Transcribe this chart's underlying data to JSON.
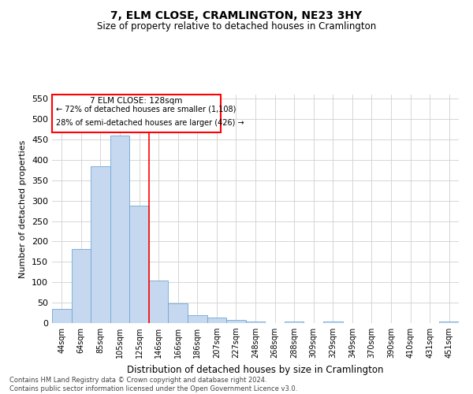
{
  "title": "7, ELM CLOSE, CRAMLINGTON, NE23 3HY",
  "subtitle": "Size of property relative to detached houses in Cramlington",
  "xlabel": "Distribution of detached houses by size in Cramlington",
  "ylabel": "Number of detached properties",
  "footer_line1": "Contains HM Land Registry data © Crown copyright and database right 2024.",
  "footer_line2": "Contains public sector information licensed under the Open Government Licence v3.0.",
  "annotation_line1": "7 ELM CLOSE: 128sqm",
  "annotation_line2": "← 72% of detached houses are smaller (1,108)",
  "annotation_line3": "28% of semi-detached houses are larger (426) →",
  "bar_color": "#c5d8f0",
  "bar_edge_color": "#6fa8d4",
  "categories": [
    "44sqm",
    "64sqm",
    "85sqm",
    "105sqm",
    "125sqm",
    "146sqm",
    "166sqm",
    "186sqm",
    "207sqm",
    "227sqm",
    "248sqm",
    "268sqm",
    "288sqm",
    "309sqm",
    "329sqm",
    "349sqm",
    "370sqm",
    "390sqm",
    "410sqm",
    "431sqm",
    "451sqm"
  ],
  "values": [
    35,
    182,
    385,
    460,
    287,
    104,
    48,
    20,
    13,
    8,
    4,
    0,
    3,
    0,
    3,
    0,
    0,
    0,
    0,
    0,
    3
  ],
  "ylim": [
    0,
    560
  ],
  "yticks": [
    0,
    50,
    100,
    150,
    200,
    250,
    300,
    350,
    400,
    450,
    500,
    550
  ],
  "red_bar_index": 4,
  "background_color": "#ffffff",
  "grid_color": "#d0d0d0"
}
